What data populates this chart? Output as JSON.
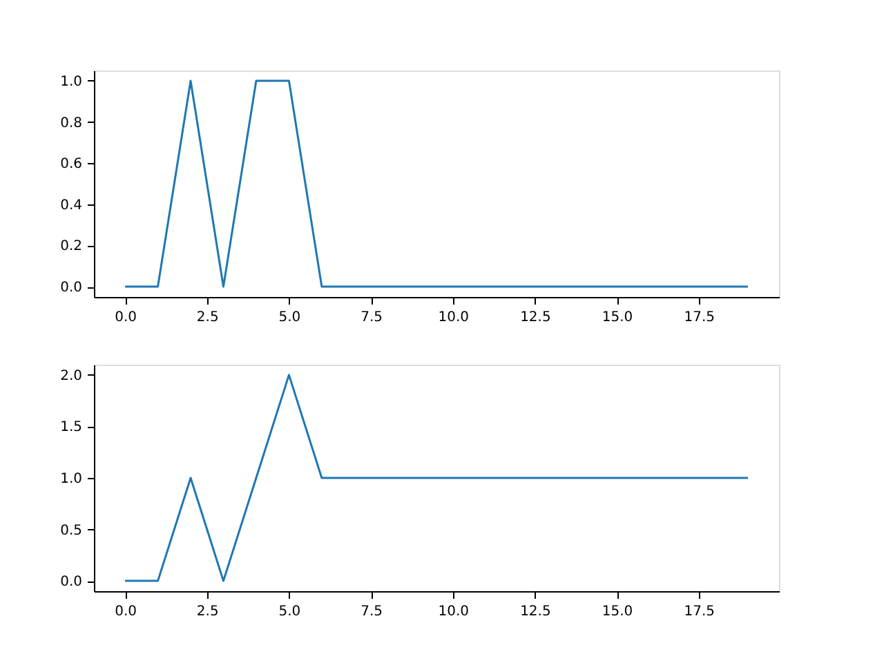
{
  "chart_data": [
    {
      "type": "line",
      "x": [
        0,
        1,
        2,
        3,
        4,
        5,
        6,
        7,
        8,
        9,
        10,
        11,
        12,
        13,
        14,
        15,
        16,
        17,
        18,
        19
      ],
      "series": [
        {
          "color": "#1f77b4",
          "values": [
            0,
            0,
            1,
            0,
            1,
            1,
            0,
            0,
            0,
            0,
            0,
            0,
            0,
            0,
            0,
            0,
            0,
            0,
            0,
            0
          ]
        }
      ],
      "xlim": [
        -0.95,
        19.95
      ],
      "ylim": [
        -0.05,
        1.05
      ],
      "xticks": [
        {
          "value": 0,
          "label": "0.0"
        },
        {
          "value": 2.5,
          "label": "2.5"
        },
        {
          "value": 5,
          "label": "5.0"
        },
        {
          "value": 7.5,
          "label": "7.5"
        },
        {
          "value": 10,
          "label": "10.0"
        },
        {
          "value": 12.5,
          "label": "12.5"
        },
        {
          "value": 15,
          "label": "15.0"
        },
        {
          "value": 17.5,
          "label": "17.5"
        }
      ],
      "yticks": [
        {
          "value": 0,
          "label": "0.0"
        },
        {
          "value": 0.2,
          "label": "0.2"
        },
        {
          "value": 0.4,
          "label": "0.4"
        },
        {
          "value": 0.6,
          "label": "0.6"
        },
        {
          "value": 0.8,
          "label": "0.8"
        },
        {
          "value": 1,
          "label": "1.0"
        }
      ],
      "grid": false,
      "legend": false
    },
    {
      "type": "line",
      "x": [
        0,
        1,
        2,
        3,
        4,
        5,
        6,
        7,
        8,
        9,
        10,
        11,
        12,
        13,
        14,
        15,
        16,
        17,
        18,
        19
      ],
      "series": [
        {
          "color": "#1f77b4",
          "values": [
            0,
            0,
            1,
            0,
            1,
            2,
            1,
            1,
            1,
            1,
            1,
            1,
            1,
            1,
            1,
            1,
            1,
            1,
            1,
            1
          ]
        }
      ],
      "xlim": [
        -0.95,
        19.95
      ],
      "ylim": [
        -0.1,
        2.1
      ],
      "xticks": [
        {
          "value": 0,
          "label": "0.0"
        },
        {
          "value": 2.5,
          "label": "2.5"
        },
        {
          "value": 5,
          "label": "5.0"
        },
        {
          "value": 7.5,
          "label": "7.5"
        },
        {
          "value": 10,
          "label": "10.0"
        },
        {
          "value": 12.5,
          "label": "12.5"
        },
        {
          "value": 15,
          "label": "15.0"
        },
        {
          "value": 17.5,
          "label": "17.5"
        }
      ],
      "yticks": [
        {
          "value": 0,
          "label": "0.0"
        },
        {
          "value": 0.5,
          "label": "0.5"
        },
        {
          "value": 1,
          "label": "1.0"
        },
        {
          "value": 1.5,
          "label": "1.5"
        },
        {
          "value": 2,
          "label": "2.0"
        }
      ],
      "grid": false,
      "legend": false
    }
  ]
}
